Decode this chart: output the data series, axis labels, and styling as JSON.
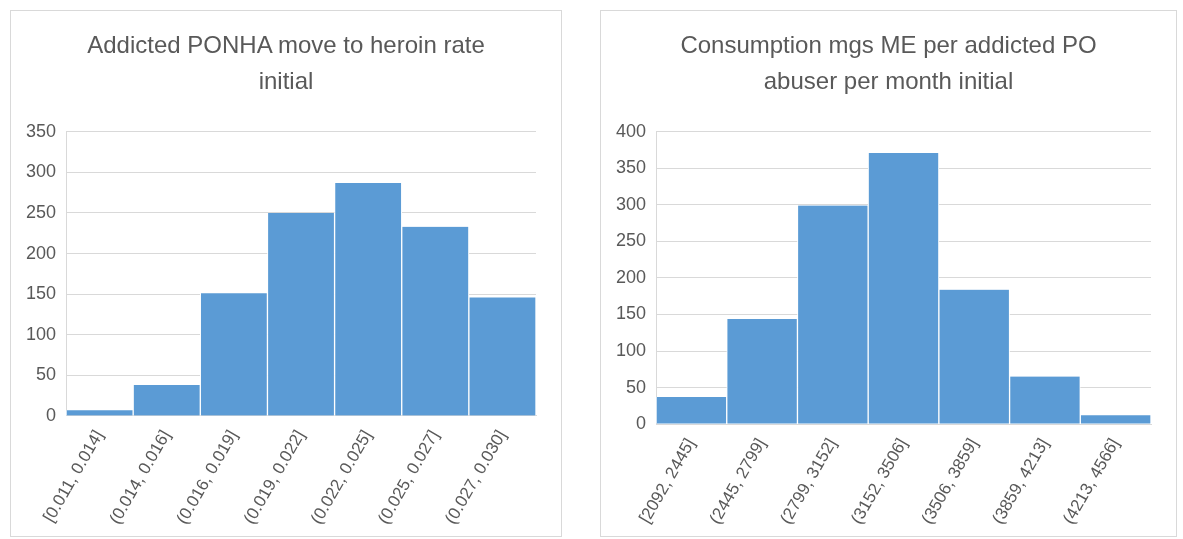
{
  "chart_data": [
    {
      "type": "bar",
      "title": "Addicted PONHA move to heroin rate initial",
      "categories": [
        "[0.011, 0.014]",
        "(0.014, 0.016]",
        "(0.016, 0.019]",
        "(0.019, 0.022]",
        "(0.022, 0.025]",
        "(0.025, 0.027]",
        "(0.027, 0.030]"
      ],
      "values": [
        7,
        38,
        151,
        250,
        287,
        233,
        146
      ],
      "color": "#5b9bd5",
      "ylim": [
        0,
        350
      ],
      "yticks": [
        0,
        50,
        100,
        150,
        200,
        250,
        300,
        350
      ],
      "grid": "y"
    },
    {
      "type": "bar",
      "title": "Consumption mgs ME per addicted PO abuser per month initial",
      "categories": [
        "[2092, 2445]",
        "(2445, 2799]",
        "(2799, 3152]",
        "(3152, 3506]",
        "(3506, 3859]",
        "(3859, 4213]",
        "(4213, 4566]"
      ],
      "values": [
        37,
        144,
        299,
        371,
        184,
        65,
        12
      ],
      "color": "#5b9bd5",
      "ylim": [
        0,
        400
      ],
      "yticks": [
        0,
        50,
        100,
        150,
        200,
        250,
        300,
        350,
        400
      ],
      "grid": "y"
    }
  ]
}
